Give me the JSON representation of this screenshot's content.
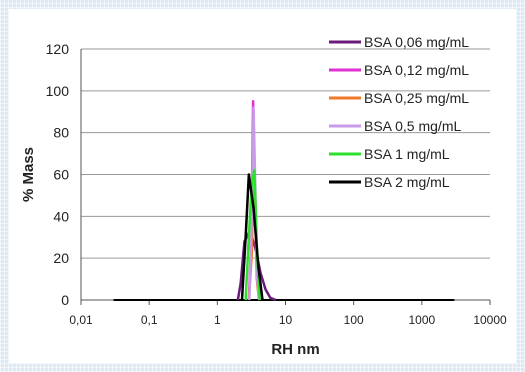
{
  "chart_data": {
    "type": "line",
    "title": "",
    "xlabel": "RH nm",
    "ylabel": "% Mass",
    "xscale": "log",
    "xlim": [
      0.01,
      10000
    ],
    "ylim": [
      0,
      120
    ],
    "x_ticks": [
      0.01,
      0.1,
      1,
      10,
      100,
      1000,
      10000
    ],
    "x_tick_labels": [
      "0,01",
      "0,1",
      "1",
      "10",
      "100",
      "1000",
      "10000"
    ],
    "y_ticks": [
      0,
      20,
      40,
      60,
      80,
      100,
      120
    ],
    "y_tick_labels": [
      "0",
      "20",
      "40",
      "60",
      "80",
      "100",
      "120"
    ],
    "grid": "horizontal",
    "legend": "top-right",
    "series": [
      {
        "name": "BSA 0,06 mg/mL",
        "color": "#6a1b7a",
        "x": [
          2.0,
          2.2,
          2.5,
          3.0,
          3.6,
          4.3,
          5.1,
          6.0,
          7.2
        ],
        "y": [
          0,
          8,
          28,
          33,
          25,
          13,
          5,
          1,
          0
        ]
      },
      {
        "name": "BSA 0,12 mg/mL",
        "color": "#e030d0",
        "x": [
          2.9,
          3.15,
          3.35,
          3.55,
          3.8,
          4.1
        ],
        "y": [
          0,
          30,
          95,
          50,
          10,
          0
        ]
      },
      {
        "name": "BSA 0,25 mg/mL",
        "color": "#f07a2a",
        "x": [
          2.9,
          3.2,
          3.4,
          3.65,
          3.9,
          4.2
        ],
        "y": [
          0,
          22,
          60,
          32,
          6,
          0
        ]
      },
      {
        "name": "BSA 0,5 mg/mL",
        "color": "#c89be8",
        "x": [
          2.95,
          3.2,
          3.4,
          3.6,
          3.85,
          4.15
        ],
        "y": [
          0,
          40,
          92,
          55,
          10,
          0
        ]
      },
      {
        "name": "BSA 1 mg/mL",
        "color": "#2ee02e",
        "x": [
          2.6,
          2.9,
          3.2,
          3.5,
          3.85,
          4.2
        ],
        "y": [
          0,
          30,
          56,
          62,
          20,
          0
        ]
      },
      {
        "name": "BSA 2 mg/mL",
        "color": "#000000",
        "x": [
          2.3,
          2.6,
          2.9,
          3.4,
          4.0,
          4.6
        ],
        "y": [
          0,
          30,
          60,
          44,
          16,
          0
        ]
      }
    ],
    "baseline": {
      "x": [
        0.03,
        3000
      ],
      "y": [
        0,
        0
      ],
      "color": "#000000"
    }
  }
}
